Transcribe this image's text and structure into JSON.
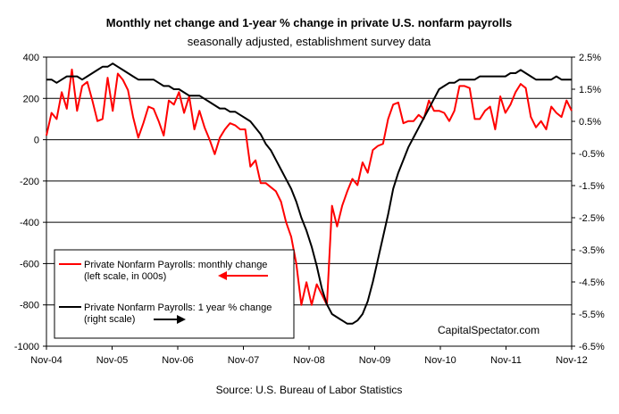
{
  "chart_data": {
    "type": "line",
    "title": "Monthly net change and 1-year %  change in private U.S. nonfarm payrolls",
    "subtitle": "seasonally adjusted, establishment survey data",
    "source": "Source: U.S. Bureau of Labor Statistics",
    "watermark": "CapitalSpectator.com",
    "x_start": "Nov-04",
    "x_end": "Nov-12",
    "x_tick_labels": [
      "Nov-04",
      "Nov-05",
      "Nov-06",
      "Nov-07",
      "Nov-08",
      "Nov-09",
      "Nov-10",
      "Nov-11",
      "Nov-12"
    ],
    "left_axis": {
      "range": [
        -1000,
        400
      ],
      "ticks": [
        "400",
        "200",
        "0",
        "-200",
        "-400",
        "-600",
        "-800",
        "-1000"
      ],
      "color": "#000000"
    },
    "right_axis": {
      "range": [
        -6.5,
        2.5
      ],
      "ticks": [
        "2.5%",
        "1.5%",
        "0.5%",
        "-0.5%",
        "-1.5%",
        "-2.5%",
        "-3.5%",
        "-4.5%",
        "-5.5%",
        "-6.5%"
      ]
    },
    "grid": "horizontal",
    "legend": {
      "placement": "bottom-left",
      "entries": [
        {
          "line1": "Private Nonfarm Payrolls: monthly change",
          "line2": "(left scale, in 000s)",
          "color": "#ff0000",
          "arrow": "left"
        },
        {
          "line1": "Private Nonfarm Payrolls:  1 year % change",
          "line2": "(right scale)",
          "color": "#000000",
          "arrow": "right"
        }
      ]
    },
    "series": [
      {
        "axis": "left",
        "color": "#ff0000",
        "values": [
          20,
          130,
          100,
          230,
          150,
          340,
          140,
          260,
          280,
          190,
          90,
          100,
          300,
          140,
          320,
          290,
          240,
          110,
          10,
          80,
          160,
          150,
          90,
          20,
          190,
          170,
          230,
          130,
          210,
          50,
          140,
          60,
          0,
          -70,
          10,
          50,
          80,
          70,
          50,
          50,
          -130,
          -100,
          -210,
          -210,
          -230,
          -250,
          -300,
          -400,
          -470,
          -600,
          -800,
          -690,
          -800,
          -700,
          -750,
          -800,
          -320,
          -420,
          -320,
          -250,
          -190,
          -220,
          -110,
          -160,
          -50,
          -30,
          -20,
          100,
          170,
          180,
          80,
          90,
          90,
          120,
          100,
          190,
          140,
          140,
          130,
          90,
          140,
          260,
          260,
          250,
          100,
          100,
          140,
          160,
          50,
          210,
          130,
          170,
          230,
          270,
          250,
          110,
          60,
          90,
          50,
          160,
          130,
          110,
          190,
          140
        ],
        "label": ""
      },
      {
        "axis": "right",
        "color": "#000000",
        "values": [
          1.8,
          1.8,
          1.7,
          1.8,
          1.9,
          1.9,
          1.9,
          1.8,
          1.9,
          2.0,
          2.1,
          2.2,
          2.2,
          2.3,
          2.2,
          2.1,
          2.0,
          1.9,
          1.8,
          1.8,
          1.8,
          1.8,
          1.7,
          1.6,
          1.6,
          1.5,
          1.5,
          1.4,
          1.3,
          1.3,
          1.3,
          1.2,
          1.1,
          1.0,
          0.9,
          0.9,
          0.8,
          0.8,
          0.7,
          0.6,
          0.5,
          0.3,
          0.1,
          -0.2,
          -0.4,
          -0.7,
          -1.0,
          -1.3,
          -1.6,
          -2.0,
          -2.5,
          -2.9,
          -3.4,
          -4.0,
          -4.7,
          -5.2,
          -5.5,
          -5.6,
          -5.7,
          -5.8,
          -5.8,
          -5.7,
          -5.5,
          -5.1,
          -4.5,
          -3.8,
          -3.1,
          -2.4,
          -1.6,
          -1.1,
          -0.7,
          -0.3,
          0.0,
          0.3,
          0.6,
          0.9,
          1.2,
          1.5,
          1.6,
          1.7,
          1.7,
          1.8,
          1.8,
          1.8,
          1.8,
          1.9,
          1.9,
          1.9,
          1.9,
          1.9,
          1.9,
          2.0,
          2.0,
          2.1,
          2.0,
          1.9,
          1.8,
          1.8,
          1.8,
          1.8,
          1.9,
          1.8,
          1.8,
          1.8
        ],
        "label": ""
      }
    ]
  }
}
